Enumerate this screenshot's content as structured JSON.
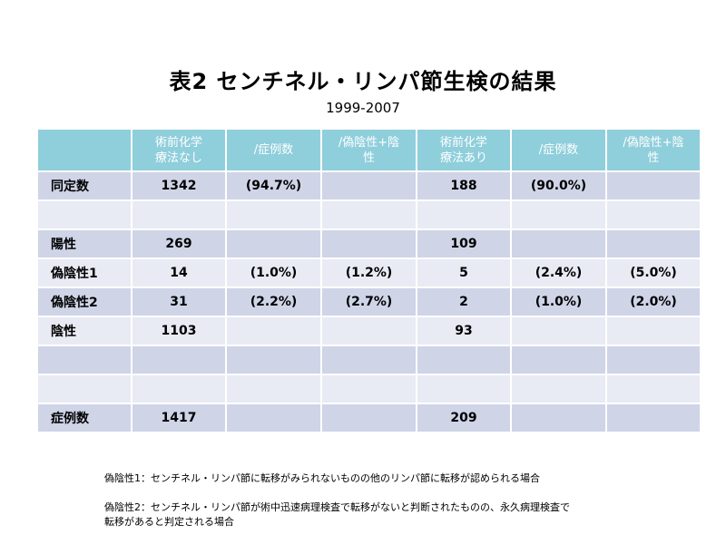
{
  "title": "表2  センチネル・リンパ節生検の結果",
  "subtitle": "1999-2007",
  "table": {
    "headers": [
      "",
      "術前化学\n療法なし",
      "/症例数",
      "/偽陰性+陰\n性",
      "術前化学\n療法あり",
      "/症例数",
      "/偽陰性+陰\n性"
    ],
    "rows": [
      [
        "同定数",
        "1342",
        "(94.7%)",
        "",
        "188",
        "(90.0%)",
        ""
      ],
      [
        "",
        "",
        "",
        "",
        "",
        "",
        ""
      ],
      [
        "陽性",
        "269",
        "",
        "",
        "109",
        "",
        ""
      ],
      [
        "偽陰性1",
        "14",
        "(1.0%)",
        "(1.2%)",
        "5",
        "(2.4%)",
        "(5.0%)"
      ],
      [
        "偽陰性2",
        "31",
        "(2.2%)",
        "(2.7%)",
        "2",
        "(1.0%)",
        "(2.0%)"
      ],
      [
        "陰性",
        "1103",
        "",
        "",
        "93",
        "",
        ""
      ],
      [
        "",
        "",
        "",
        "",
        "",
        "",
        ""
      ],
      [
        "",
        "",
        "",
        "",
        "",
        "",
        ""
      ],
      [
        "症例数",
        "1417",
        "",
        "",
        "209",
        "",
        ""
      ]
    ]
  },
  "notes": [
    "偽陰性1：センチネル・リンパ節に転移がみられないものの他のリンパ節に転移が認められる場合",
    "偽陰性2：センチネル・リンパ節が術中迅速病理検査で転移がないと判断されたものの、永久病理検査で\n転移があると判定される場合"
  ]
}
